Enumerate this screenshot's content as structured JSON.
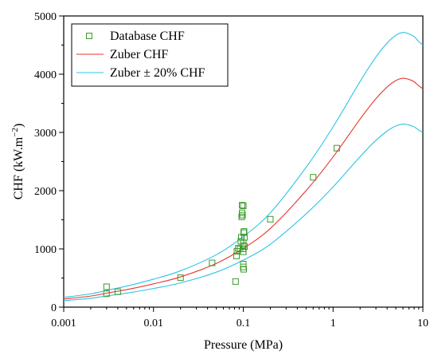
{
  "chart_data": {
    "type": "scatter",
    "title": "",
    "xlabel": "Pressure (MPa)",
    "ylabel": "CHF (kW.m",
    "ylabel_unit_sup": "−2",
    "ylabel_suffix": ")",
    "x_scale": "log",
    "xlim": [
      0.001,
      10
    ],
    "ylim": [
      0,
      5000
    ],
    "x_ticks": [
      0.001,
      0.01,
      0.1,
      1,
      10
    ],
    "x_tick_labels": [
      "0.001",
      "0.01",
      "0.1",
      "1",
      "10"
    ],
    "y_ticks": [
      0,
      1000,
      2000,
      3000,
      4000,
      5000
    ],
    "y_tick_labels": [
      "0",
      "1000",
      "2000",
      "3000",
      "4000",
      "5000"
    ],
    "grid": false,
    "legend_position": "top-left",
    "series": [
      {
        "name": "Database CHF",
        "kind": "scatter",
        "marker": "open-square",
        "color": "#3a9a2a",
        "points": [
          [
            0.003,
            350
          ],
          [
            0.003,
            230
          ],
          [
            0.004,
            265
          ],
          [
            0.02,
            505
          ],
          [
            0.045,
            760
          ],
          [
            0.082,
            440
          ],
          [
            0.084,
            880
          ],
          [
            0.085,
            960
          ],
          [
            0.088,
            1010
          ],
          [
            0.092,
            1000
          ],
          [
            0.094,
            1130
          ],
          [
            0.095,
            1200
          ],
          [
            0.096,
            1550
          ],
          [
            0.097,
            1620
          ],
          [
            0.097,
            1750
          ],
          [
            0.098,
            1580
          ],
          [
            0.1,
            1740
          ],
          [
            0.099,
            1000
          ],
          [
            0.1,
            1060
          ],
          [
            0.1,
            1100
          ],
          [
            0.101,
            1280
          ],
          [
            0.102,
            1300
          ],
          [
            0.103,
            1200
          ],
          [
            0.1,
            950
          ],
          [
            0.1,
            740
          ],
          [
            0.1,
            690
          ],
          [
            0.101,
            650
          ],
          [
            0.103,
            1040
          ],
          [
            0.2,
            1510
          ],
          [
            0.6,
            2230
          ],
          [
            1.1,
            2730
          ]
        ]
      },
      {
        "name": "Zuber CHF",
        "kind": "line",
        "color": "#e8372c",
        "points": [
          [
            0.001,
            140
          ],
          [
            0.002,
            190
          ],
          [
            0.003,
            240
          ],
          [
            0.005,
            300
          ],
          [
            0.01,
            400
          ],
          [
            0.02,
            520
          ],
          [
            0.05,
            750
          ],
          [
            0.1,
            1010
          ],
          [
            0.2,
            1350
          ],
          [
            0.5,
            2000
          ],
          [
            1,
            2580
          ],
          [
            2,
            3230
          ],
          [
            3,
            3580
          ],
          [
            4,
            3780
          ],
          [
            5,
            3890
          ],
          [
            6,
            3930
          ],
          [
            7,
            3910
          ],
          [
            8,
            3870
          ],
          [
            9,
            3800
          ],
          [
            10,
            3750
          ]
        ]
      },
      {
        "name": "Zuber ± 20% CHF",
        "kind": "line",
        "color": "#2bc4e8",
        "bands": [
          [
            [
              0.001,
              168
            ],
            [
              0.002,
              228
            ],
            [
              0.003,
              288
            ],
            [
              0.005,
              360
            ],
            [
              0.01,
              480
            ],
            [
              0.02,
              624
            ],
            [
              0.05,
              900
            ],
            [
              0.1,
              1212
            ],
            [
              0.2,
              1620
            ],
            [
              0.5,
              2400
            ],
            [
              1,
              3096
            ],
            [
              2,
              3876
            ],
            [
              3,
              4296
            ],
            [
              4,
              4536
            ],
            [
              5,
              4668
            ],
            [
              6,
              4716
            ],
            [
              7,
              4692
            ],
            [
              8,
              4644
            ],
            [
              9,
              4560
            ],
            [
              10,
              4500
            ]
          ],
          [
            [
              0.001,
              112
            ],
            [
              0.002,
              152
            ],
            [
              0.003,
              192
            ],
            [
              0.005,
              240
            ],
            [
              0.01,
              320
            ],
            [
              0.02,
              416
            ],
            [
              0.05,
              600
            ],
            [
              0.1,
              808
            ],
            [
              0.2,
              1080
            ],
            [
              0.5,
              1600
            ],
            [
              1,
              2064
            ],
            [
              2,
              2584
            ],
            [
              3,
              2864
            ],
            [
              4,
              3024
            ],
            [
              5,
              3112
            ],
            [
              6,
              3144
            ],
            [
              7,
              3128
            ],
            [
              8,
              3096
            ],
            [
              9,
              3040
            ],
            [
              10,
              3000
            ]
          ]
        ]
      }
    ]
  },
  "legend": {
    "items": [
      {
        "label": "Database CHF",
        "kind": "marker",
        "color": "#3a9a2a"
      },
      {
        "label": "Zuber CHF",
        "kind": "line",
        "color": "#e8372c"
      },
      {
        "label": "Zuber ± 20% CHF",
        "kind": "line",
        "color": "#2bc4e8"
      }
    ]
  }
}
